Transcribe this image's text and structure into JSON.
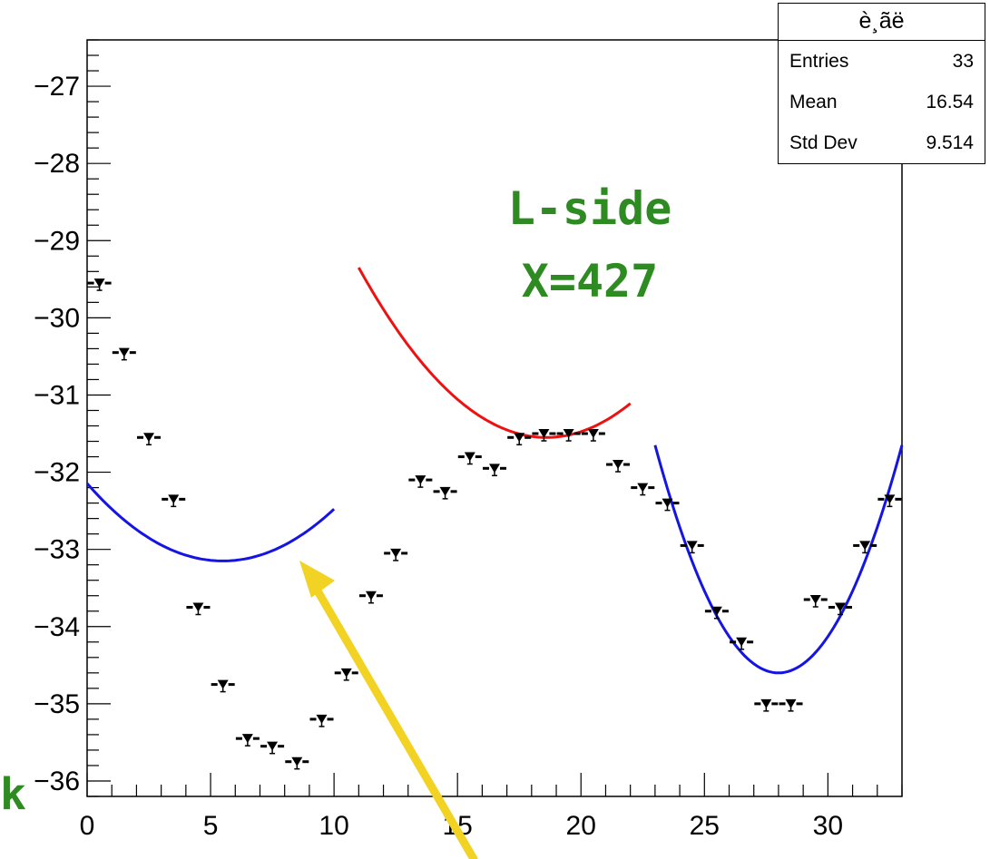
{
  "chart_data": {
    "type": "scatter",
    "title": "",
    "xlabel": "",
    "ylabel": "",
    "xlim": [
      0,
      33
    ],
    "ylim": [
      -36.2,
      -26.4
    ],
    "x_ticks": [
      "0",
      "5",
      "10",
      "15",
      "20",
      "25",
      "30"
    ],
    "y_ticks": [
      "−27",
      "−28",
      "−29",
      "−30",
      "−31",
      "−32",
      "−33",
      "−34",
      "−35",
      "−36"
    ],
    "points": {
      "x": [
        0.5,
        1.5,
        2.5,
        3.5,
        4.5,
        5.5,
        6.5,
        7.5,
        8.5,
        9.5,
        10.5,
        11.5,
        12.5,
        13.5,
        14.5,
        15.5,
        16.5,
        17.5,
        18.5,
        19.5,
        20.5,
        21.5,
        22.5,
        23.5,
        24.5,
        25.5,
        26.5,
        27.5,
        28.5,
        29.5,
        30.5,
        31.5,
        32.5
      ],
      "y": [
        -29.55,
        -30.45,
        -31.55,
        -32.35,
        -33.75,
        -34.75,
        -35.45,
        -35.55,
        -35.75,
        -35.2,
        -34.6,
        -33.6,
        -33.05,
        -32.1,
        -32.25,
        -31.8,
        -31.95,
        -31.55,
        -31.5,
        -31.5,
        -31.5,
        -31.9,
        -32.2,
        -32.4,
        -32.95,
        -33.8,
        -34.2,
        -35.0,
        -35.0,
        -33.65,
        -33.75,
        -32.95,
        -32.35
      ]
    },
    "fits": [
      {
        "color": "#1414e6",
        "x_range": [
          0,
          10
        ],
        "vertex_x": 5.5,
        "vertex_y": -33.15,
        "a": 0.0332
      },
      {
        "color": "#ee1111",
        "x_range": [
          11,
          22
        ],
        "vertex_x": 18.6,
        "vertex_y": -31.55,
        "a": 0.0381
      },
      {
        "color": "#1414e6",
        "x_range": [
          23,
          33
        ],
        "vertex_x": 28.0,
        "vertex_y": -34.6,
        "a": 0.118
      }
    ],
    "stats_box": {
      "title": "è¸ãë",
      "rows": [
        {
          "label": "Entries",
          "value": "33"
        },
        {
          "label": "Mean",
          "value": "16.54"
        },
        {
          "label": "Std Dev",
          "value": "9.514"
        }
      ]
    },
    "annotations": {
      "side_label": "L-side",
      "x_label": "X=427",
      "corner_letter": "k"
    },
    "arrow_color": "#f2d222"
  }
}
